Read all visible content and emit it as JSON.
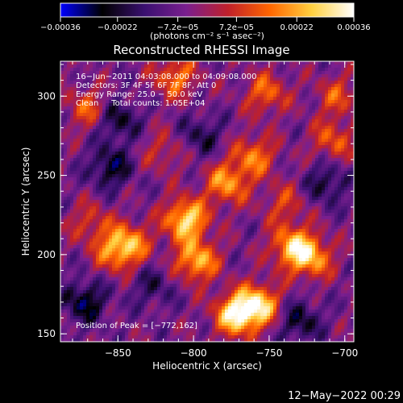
{
  "chart_data": {
    "type": "heatmap",
    "title": "Reconstructed RHESSI Image",
    "xlabel": "Heliocentric X (arcsec)",
    "ylabel": "Heliocentric Y (arcsec)",
    "xlim": [
      -888,
      -694
    ],
    "ylim": [
      145,
      322
    ],
    "x_ticks": [
      {
        "value": -850,
        "label": "−850"
      },
      {
        "value": -800,
        "label": "−800"
      },
      {
        "value": -750,
        "label": "−750"
      },
      {
        "value": -700,
        "label": "−700"
      }
    ],
    "y_ticks": [
      {
        "value": 150,
        "label": "150"
      },
      {
        "value": 200,
        "label": "200"
      },
      {
        "value": 250,
        "label": "250"
      },
      {
        "value": 300,
        "label": "300"
      }
    ],
    "colorbar": {
      "range": [
        -0.00036,
        0.00036
      ],
      "ticks": [
        {
          "value": -0.00036,
          "label": "−0.00036"
        },
        {
          "value": -0.00022,
          "label": "−0.00022"
        },
        {
          "value": -7.2e-05,
          "label": "−7.2e−05"
        },
        {
          "value": 7.2e-05,
          "label": "7.2e−05"
        },
        {
          "value": 0.00022,
          "label": "0.00022"
        },
        {
          "value": 0.00036,
          "label": "0.00036"
        }
      ],
      "units_label": "(photons cm⁻² s⁻¹ asec⁻²)",
      "colors": [
        "#0000ff",
        "#000000",
        "#3a1070",
        "#7a1f8f",
        "#c0202a",
        "#ff6600",
        "#ffd040",
        "#ffffff"
      ]
    },
    "annotations": [
      "16−Jun−2011 04:03:08.000 to 04:09:08.000",
      "Detectors: 3F 4F 5F 6F 7F 8F, Att 0",
      "Energy Range: 25.0 − 50.0 keV",
      "Clean     Total counts: 1.05E+04"
    ],
    "peak_label": "Position of Peak = [−772,162]",
    "peak_position": [
      -772,
      162
    ],
    "blobs": [
      {
        "x": -805,
        "y": 222,
        "value": 0.00036
      },
      {
        "x": -798,
        "y": 196,
        "value": 0.0003
      },
      {
        "x": -772,
        "y": 162,
        "value": 0.00036
      },
      {
        "x": -757,
        "y": 168,
        "value": 0.00034
      },
      {
        "x": -735,
        "y": 205,
        "value": 0.00028
      },
      {
        "x": -722,
        "y": 198,
        "value": 0.00026
      },
      {
        "x": -778,
        "y": 245,
        "value": 0.00026
      },
      {
        "x": -760,
        "y": 262,
        "value": 0.00022
      },
      {
        "x": -842,
        "y": 207,
        "value": 0.00022
      },
      {
        "x": -852,
        "y": 202,
        "value": 0.0002
      },
      {
        "x": -752,
        "y": 302,
        "value": 0.0002
      },
      {
        "x": -812,
        "y": 312,
        "value": 0.00022
      },
      {
        "x": -870,
        "y": 292,
        "value": 0.00018
      },
      {
        "x": -708,
        "y": 272,
        "value": 0.00018
      },
      {
        "x": -705,
        "y": 300,
        "value": 0.00016
      },
      {
        "x": -868,
        "y": 220,
        "value": 0.00014
      },
      {
        "x": -820,
        "y": 265,
        "value": 0.00012
      },
      {
        "x": -740,
        "y": 232,
        "value": 0.00014
      },
      {
        "x": -855,
        "y": 255,
        "value": -0.0002
      },
      {
        "x": -872,
        "y": 170,
        "value": -0.00022
      },
      {
        "x": -850,
        "y": 285,
        "value": -0.00018
      },
      {
        "x": -712,
        "y": 245,
        "value": -0.00016
      },
      {
        "x": -730,
        "y": 158,
        "value": -0.00018
      },
      {
        "x": -795,
        "y": 275,
        "value": -0.00014
      },
      {
        "x": -827,
        "y": 180,
        "value": -0.00012
      }
    ]
  },
  "footer": {
    "timestamp": "12−May−2022 00:29"
  }
}
